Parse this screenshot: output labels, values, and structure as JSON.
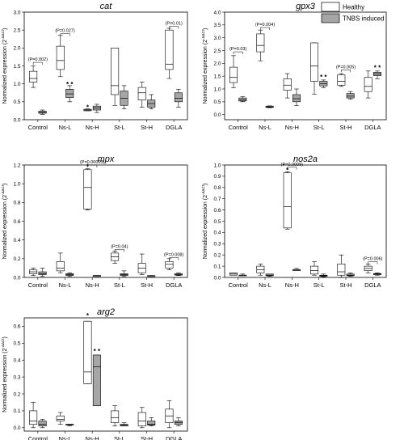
{
  "legend": {
    "healthy_label": "Healthy",
    "tnbs_label": "TNBS induced",
    "healthy_fill": "#ffffff",
    "tnbs_fill": "#a6a6a6",
    "placement": "top-right"
  },
  "chart_data": [
    {
      "id": "cat",
      "type": "box",
      "title": "cat",
      "ylabel": "Normalized expression (2",
      "ylabel_sup": "-ΔΔCt",
      "categories": [
        "Control",
        "Ns-L",
        "Ns-H",
        "St-L",
        "St-H",
        "DGLA"
      ],
      "ylim": [
        0,
        3
      ],
      "yticks": [
        0.0,
        0.5,
        1.0,
        1.5,
        2.0,
        2.5,
        3.0
      ],
      "tick_labels": [
        "0.0",
        "0.5",
        "1.0",
        "1.5",
        "2.0",
        "2.5",
        "3.0"
      ],
      "series": [
        {
          "name": "Healthy",
          "boxes": [
            {
              "min": 0.9,
              "q1": 1.05,
              "median": 1.15,
              "q3": 1.35,
              "max": 1.5
            },
            {
              "min": 1.2,
              "q1": 1.4,
              "median": 1.65,
              "q3": 2.05,
              "max": 2.35
            },
            {
              "min": 0.25,
              "q1": 0.25,
              "median": 0.27,
              "q3": 0.29,
              "max": 0.3
            },
            {
              "min": 0.4,
              "q1": 0.7,
              "median": 0.95,
              "q3": 2.0,
              "max": 2.0
            },
            {
              "min": 0.35,
              "q1": 0.55,
              "median": 0.75,
              "q3": 0.9,
              "max": 1.05
            },
            {
              "min": 1.15,
              "q1": 1.4,
              "median": 1.55,
              "q3": 2.5,
              "max": 2.55
            }
          ]
        },
        {
          "name": "TNBS induced",
          "boxes": [
            {
              "min": 0.15,
              "q1": 0.18,
              "median": 0.2,
              "q3": 0.24,
              "max": 0.27
            },
            {
              "min": 0.5,
              "q1": 0.62,
              "median": 0.72,
              "q3": 0.85,
              "max": 0.95
            },
            {
              "min": 0.2,
              "q1": 0.27,
              "median": 0.33,
              "q3": 0.38,
              "max": 0.43
            },
            {
              "min": 0.3,
              "q1": 0.4,
              "median": 0.6,
              "q3": 0.8,
              "max": 0.95
            },
            {
              "min": 0.3,
              "q1": 0.35,
              "median": 0.45,
              "q3": 0.55,
              "max": 0.7
            },
            {
              "min": 0.35,
              "q1": 0.5,
              "median": 0.6,
              "q3": 0.75,
              "max": 0.85
            }
          ]
        }
      ],
      "sig": [
        {
          "label": "(P=0.002)",
          "group": 0,
          "y": 1.6
        },
        {
          "label": "(P=0.027)",
          "group": 1,
          "y": 2.4
        },
        {
          "label": "(P=0.01)",
          "group": 5,
          "y": 2.6
        }
      ],
      "stars": [
        {
          "text": "* *",
          "group": 1,
          "series": 1,
          "y": 0.97
        },
        {
          "text": "*",
          "group": 2,
          "series": 0,
          "y": 0.33
        }
      ]
    },
    {
      "id": "gpx3",
      "type": "box",
      "title": "gpx3",
      "ylabel": "Normalized expression (2",
      "ylabel_sup": "-ΔΔCt",
      "categories": [
        "Control",
        "Ns-L",
        "Ns-H",
        "St-L",
        "St-H",
        "DGLA"
      ],
      "ylim": [
        -0.2,
        4
      ],
      "yticks": [
        0.0,
        0.5,
        1.0,
        1.5,
        2.0,
        2.5,
        3.0,
        3.5,
        4.0
      ],
      "tick_labels": [
        "0.0",
        "0.5",
        "1.0",
        "1.5",
        "2.0",
        "2.5",
        "3.0",
        "3.5",
        "4.0"
      ],
      "series": [
        {
          "name": "Healthy",
          "boxes": [
            {
              "min": 1.05,
              "q1": 1.25,
              "median": 1.45,
              "q3": 1.85,
              "max": 2.3
            },
            {
              "min": 2.1,
              "q1": 2.45,
              "median": 2.7,
              "q3": 3.15,
              "max": 3.3
            },
            {
              "min": 0.65,
              "q1": 0.95,
              "median": 1.15,
              "q3": 1.4,
              "max": 1.6
            },
            {
              "min": 0.8,
              "q1": 1.3,
              "median": 1.9,
              "q3": 2.8,
              "max": 2.8
            },
            {
              "min": 1.1,
              "q1": 1.15,
              "median": 1.3,
              "q3": 1.55,
              "max": 1.6
            },
            {
              "min": 0.65,
              "q1": 0.9,
              "median": 1.1,
              "q3": 1.45,
              "max": 1.7
            }
          ]
        },
        {
          "name": "TNBS induced",
          "boxes": [
            {
              "min": 0.5,
              "q1": 0.53,
              "median": 0.58,
              "q3": 0.65,
              "max": 0.7
            },
            {
              "min": 0.27,
              "q1": 0.28,
              "median": 0.3,
              "q3": 0.33,
              "max": 0.34
            },
            {
              "min": 0.35,
              "q1": 0.5,
              "median": 0.62,
              "q3": 0.78,
              "max": 1.0
            },
            {
              "min": 1.05,
              "q1": 1.12,
              "median": 1.2,
              "q3": 1.3,
              "max": 1.35
            },
            {
              "min": 0.6,
              "q1": 0.65,
              "median": 0.72,
              "q3": 0.82,
              "max": 0.9
            },
            {
              "min": 1.4,
              "q1": 1.52,
              "median": 1.58,
              "q3": 1.65,
              "max": 1.7
            }
          ]
        }
      ],
      "sig": [
        {
          "label": "(P=0.03)",
          "group": 0,
          "y": 2.45
        },
        {
          "label": "(P=0.004)",
          "group": 1,
          "y": 3.4
        },
        {
          "label": "(P=0.005)",
          "group": 4,
          "y": 1.75
        }
      ],
      "stars": [
        {
          "text": "* *",
          "group": 3,
          "series": 1,
          "y": 1.45
        },
        {
          "text": "* *",
          "group": 5,
          "series": 1,
          "y": 1.8
        }
      ]
    },
    {
      "id": "mpx",
      "type": "box",
      "title": "mpx",
      "ylabel": "Normalized expression (2",
      "ylabel_sup": "-ΔΔCt",
      "categories": [
        "Control",
        "Ns-L",
        "Ns-H",
        "St-L",
        "St-H",
        "DGLA"
      ],
      "ylim": [
        0,
        1.2
      ],
      "yticks": [
        0.0,
        0.2,
        0.4,
        0.6,
        0.8,
        1.0,
        1.2
      ],
      "tick_labels": [
        "0.0",
        "0.2",
        "0.4",
        "0.6",
        "0.8",
        "1.0",
        "1.2"
      ],
      "series": [
        {
          "name": "Healthy",
          "boxes": [
            {
              "min": 0.02,
              "q1": 0.04,
              "median": 0.06,
              "q3": 0.08,
              "max": 0.1
            },
            {
              "min": 0.05,
              "q1": 0.07,
              "median": 0.1,
              "q3": 0.17,
              "max": 0.26
            },
            {
              "min": 0.72,
              "q1": 0.73,
              "median": 0.96,
              "q3": 1.15,
              "max": 1.16
            },
            {
              "min": 0.15,
              "q1": 0.18,
              "median": 0.22,
              "q3": 0.26,
              "max": 0.28
            },
            {
              "min": 0.03,
              "q1": 0.05,
              "median": 0.1,
              "q3": 0.15,
              "max": 0.25
            },
            {
              "min": 0.08,
              "q1": 0.1,
              "median": 0.14,
              "q3": 0.17,
              "max": 0.2
            }
          ]
        },
        {
          "name": "TNBS induced",
          "boxes": [
            {
              "min": 0.01,
              "q1": 0.03,
              "median": 0.04,
              "q3": 0.06,
              "max": 0.1
            },
            {
              "min": 0.01,
              "q1": 0.02,
              "median": 0.03,
              "q3": 0.04,
              "max": 0.05
            },
            {
              "min": 0.01,
              "q1": 0.01,
              "median": 0.02,
              "q3": 0.02,
              "max": 0.02
            },
            {
              "min": 0.01,
              "q1": 0.02,
              "median": 0.03,
              "q3": 0.04,
              "max": 0.07
            },
            {
              "min": 0.01,
              "q1": 0.01,
              "median": 0.01,
              "q3": 0.02,
              "max": 0.02
            },
            {
              "min": 0.02,
              "q1": 0.025,
              "median": 0.03,
              "q3": 0.04,
              "max": 0.05
            }
          ]
        }
      ],
      "sig": [
        {
          "label": "(P=0.00003)",
          "group": 2,
          "y": 1.2
        },
        {
          "label": "(P=0.04)",
          "group": 3,
          "y": 0.3
        },
        {
          "label": "(P=0.008)",
          "group": 5,
          "y": 0.21
        }
      ],
      "stars": [
        {
          "text": "*",
          "group": 2,
          "series": 0,
          "y": 1.18
        }
      ]
    },
    {
      "id": "nos2a",
      "type": "box",
      "title": "nos2a",
      "ylabel": "Normalized expression (2",
      "ylabel_sup": "-ΔΔCt",
      "categories": [
        "Control",
        "Ns-L",
        "Ns-H",
        "St-L",
        "St-H",
        "DGLA"
      ],
      "ylim": [
        0,
        1.0
      ],
      "yticks": [
        0.0,
        0.1,
        0.2,
        0.3,
        0.4,
        0.5,
        0.6,
        0.7,
        0.8,
        0.9,
        1.0
      ],
      "tick_labels": [
        "0.0",
        "0.1",
        "0.2",
        "0.3",
        "0.4",
        "0.5",
        "0.6",
        "0.7",
        "0.8",
        "0.9",
        "1.0"
      ],
      "series": [
        {
          "name": "Healthy",
          "boxes": [
            {
              "min": 0.02,
              "q1": 0.02,
              "median": 0.03,
              "q3": 0.04,
              "max": 0.04
            },
            {
              "min": 0.02,
              "q1": 0.04,
              "median": 0.07,
              "q3": 0.1,
              "max": 0.12
            },
            {
              "min": 0.43,
              "q1": 0.44,
              "median": 0.63,
              "q3": 0.93,
              "max": 0.94
            },
            {
              "min": 0.02,
              "q1": 0.03,
              "median": 0.06,
              "q3": 0.1,
              "max": 0.14
            },
            {
              "min": 0.0,
              "q1": 0.02,
              "median": 0.05,
              "q3": 0.12,
              "max": 0.2
            },
            {
              "min": 0.04,
              "q1": 0.06,
              "median": 0.08,
              "q3": 0.1,
              "max": 0.12
            }
          ]
        },
        {
          "name": "TNBS induced",
          "boxes": [
            {
              "min": 0.02,
              "q1": 0.02,
              "median": 0.02,
              "q3": 0.02,
              "max": 0.03
            },
            {
              "min": 0.01,
              "q1": 0.015,
              "median": 0.02,
              "q3": 0.03,
              "max": 0.03
            },
            {
              "min": 0.06,
              "q1": 0.06,
              "median": 0.07,
              "q3": 0.07,
              "max": 0.08
            },
            {
              "min": 0.005,
              "q1": 0.01,
              "median": 0.015,
              "q3": 0.02,
              "max": 0.03
            },
            {
              "min": 0.01,
              "q1": 0.015,
              "median": 0.02,
              "q3": 0.03,
              "max": 0.04
            },
            {
              "min": 0.02,
              "q1": 0.025,
              "median": 0.03,
              "q3": 0.035,
              "max": 0.04
            }
          ]
        }
      ],
      "sig": [
        {
          "label": "(P=0.0009)",
          "group": 2,
          "y": 0.98
        },
        {
          "label": "(P=0.006)",
          "group": 5,
          "y": 0.14
        }
      ],
      "stars": [
        {
          "text": "*",
          "group": 2,
          "series": 0,
          "y": 0.95
        }
      ]
    },
    {
      "id": "arg2",
      "type": "box",
      "title": "arg2",
      "ylabel": "Normalized expression (2",
      "ylabel_sup": "-ΔΔCt",
      "categories": [
        "Control",
        "Ns-L",
        "Ns-H",
        "St-L",
        "St-H",
        "DGLA"
      ],
      "ylim": [
        -0.02,
        0.65
      ],
      "yticks": [
        0.0,
        0.1,
        0.2,
        0.3,
        0.4,
        0.5,
        0.6
      ],
      "tick_labels": [
        "0.0",
        "0.1",
        "0.2",
        "0.3",
        "0.4",
        "0.5",
        "0.6"
      ],
      "series": [
        {
          "name": "Healthy",
          "boxes": [
            {
              "min": 0.0,
              "q1": 0.02,
              "median": 0.04,
              "q3": 0.1,
              "max": 0.15
            },
            {
              "min": 0.02,
              "q1": 0.04,
              "median": 0.05,
              "q3": 0.07,
              "max": 0.09
            },
            {
              "min": 0.26,
              "q1": 0.26,
              "median": 0.33,
              "q3": 0.63,
              "max": 0.63
            },
            {
              "min": 0.01,
              "q1": 0.03,
              "median": 0.06,
              "q3": 0.1,
              "max": 0.13
            },
            {
              "min": 0.0,
              "q1": 0.01,
              "median": 0.04,
              "q3": 0.09,
              "max": 0.12
            },
            {
              "min": 0.0,
              "q1": 0.03,
              "median": 0.07,
              "q3": 0.11,
              "max": 0.16
            }
          ]
        },
        {
          "name": "TNBS induced",
          "boxes": [
            {
              "min": 0.0,
              "q1": 0.01,
              "median": 0.02,
              "q3": 0.04,
              "max": 0.05
            },
            {
              "min": 0.01,
              "q1": 0.015,
              "median": 0.02,
              "q3": 0.02,
              "max": 0.02
            },
            {
              "min": 0.13,
              "q1": 0.13,
              "median": 0.36,
              "q3": 0.43,
              "max": 0.43
            },
            {
              "min": 0.01,
              "q1": 0.01,
              "median": 0.015,
              "q3": 0.02,
              "max": 0.03
            },
            {
              "min": 0.01,
              "q1": 0.015,
              "median": 0.02,
              "q3": 0.04,
              "max": 0.06
            },
            {
              "min": 0.01,
              "q1": 0.02,
              "median": 0.03,
              "q3": 0.04,
              "max": 0.06
            }
          ]
        }
      ],
      "sig": [],
      "stars": [
        {
          "text": "*",
          "group": 2,
          "series": 0,
          "y": 0.66
        },
        {
          "text": "* *",
          "group": 2,
          "series": 1,
          "y": 0.45
        }
      ]
    }
  ]
}
